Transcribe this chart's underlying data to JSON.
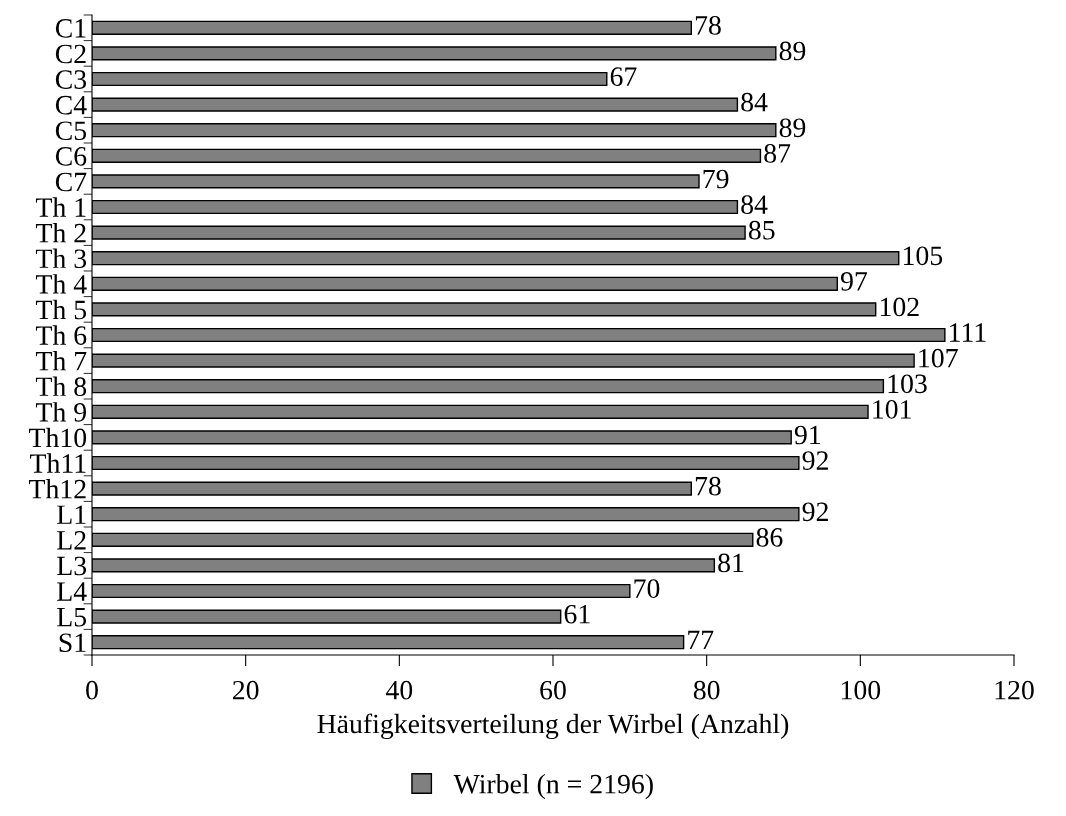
{
  "chart_data": {
    "type": "bar",
    "orientation": "horizontal",
    "categories": [
      "C1",
      "C2",
      "C3",
      "C4",
      "C5",
      "C6",
      "C7",
      "Th 1",
      "Th 2",
      "Th 3",
      "Th 4",
      "Th 5",
      "Th 6",
      "Th 7",
      "Th 8",
      "Th 9",
      "Th10",
      "Th11",
      "Th12",
      "L1",
      "L2",
      "L3",
      "L4",
      "L5",
      "S1"
    ],
    "series": [
      {
        "name": "Wirbel (n = 2196)",
        "color": "#808080",
        "values": [
          78,
          89,
          67,
          84,
          89,
          87,
          79,
          84,
          85,
          105,
          97,
          102,
          111,
          107,
          103,
          101,
          91,
          92,
          78,
          92,
          86,
          81,
          70,
          61,
          77
        ]
      }
    ],
    "xlabel": "Häufigkeitsverteilung der Wirbel (Anzahl)",
    "xlim": [
      0,
      120
    ],
    "xticks": [
      0,
      20,
      40,
      60,
      80,
      100,
      120
    ],
    "data_labels": true,
    "grid": false,
    "legend": "bottom"
  }
}
